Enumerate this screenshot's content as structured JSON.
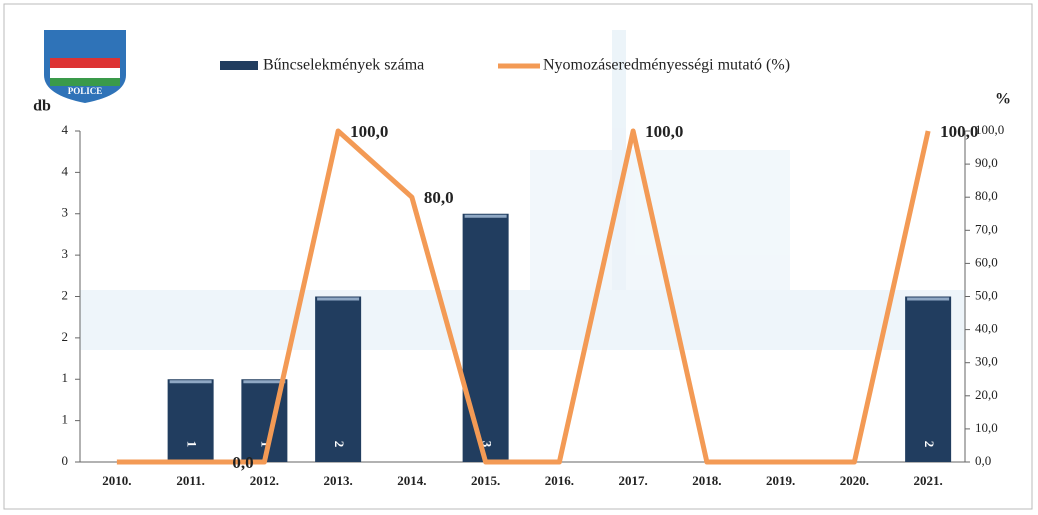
{
  "logo_text": "POLICE",
  "chart_data": {
    "type": "combo",
    "categories": [
      "2010.",
      "2011.",
      "2012.",
      "2013.",
      "2014.",
      "2015.",
      "2016.",
      "2017.",
      "2018.",
      "2019.",
      "2020.",
      "2021."
    ],
    "y_label": "db",
    "y2_label": "%",
    "ylim": [
      0,
      4
    ],
    "yticks": [
      0,
      {
        "value": 0.5,
        "label": "1"
      },
      1,
      {
        "value": 1.5,
        "label": "2"
      },
      2,
      {
        "value": 2.5,
        "label": "3"
      },
      3,
      {
        "value": 3.5,
        "label": "4"
      },
      4
    ],
    "y2lim": [
      0,
      100
    ],
    "y2ticks": [
      {
        "value": 0,
        "label": "0,0"
      },
      {
        "value": 10,
        "label": "10,0"
      },
      {
        "value": 20,
        "label": "20,0"
      },
      {
        "value": 30,
        "label": "30,0"
      },
      {
        "value": 40,
        "label": "40,0"
      },
      {
        "value": 50,
        "label": "50,0"
      },
      {
        "value": 60,
        "label": "60,0"
      },
      {
        "value": 70,
        "label": "70,0"
      },
      {
        "value": 80,
        "label": "80,0"
      },
      {
        "value": 90,
        "label": "90,0"
      },
      {
        "value": 100,
        "label": "100,0"
      }
    ],
    "series": [
      {
        "name": "Bűncselekmények száma",
        "type": "bar",
        "color": "#213d5f",
        "values": [
          null,
          1,
          1,
          2,
          null,
          3,
          null,
          null,
          null,
          null,
          null,
          2
        ]
      },
      {
        "name": "Nyomozáseredményességi mutató (%)",
        "type": "line",
        "axis": "y2",
        "color": "#f39a55",
        "values": [
          0,
          0,
          0,
          100,
          80,
          0,
          0,
          100,
          0,
          0,
          0,
          100
        ],
        "value_labels": [
          null,
          null,
          "0,0",
          "100,0",
          "80,0",
          null,
          null,
          "100,0",
          null,
          null,
          null,
          "100,0"
        ]
      }
    ]
  }
}
